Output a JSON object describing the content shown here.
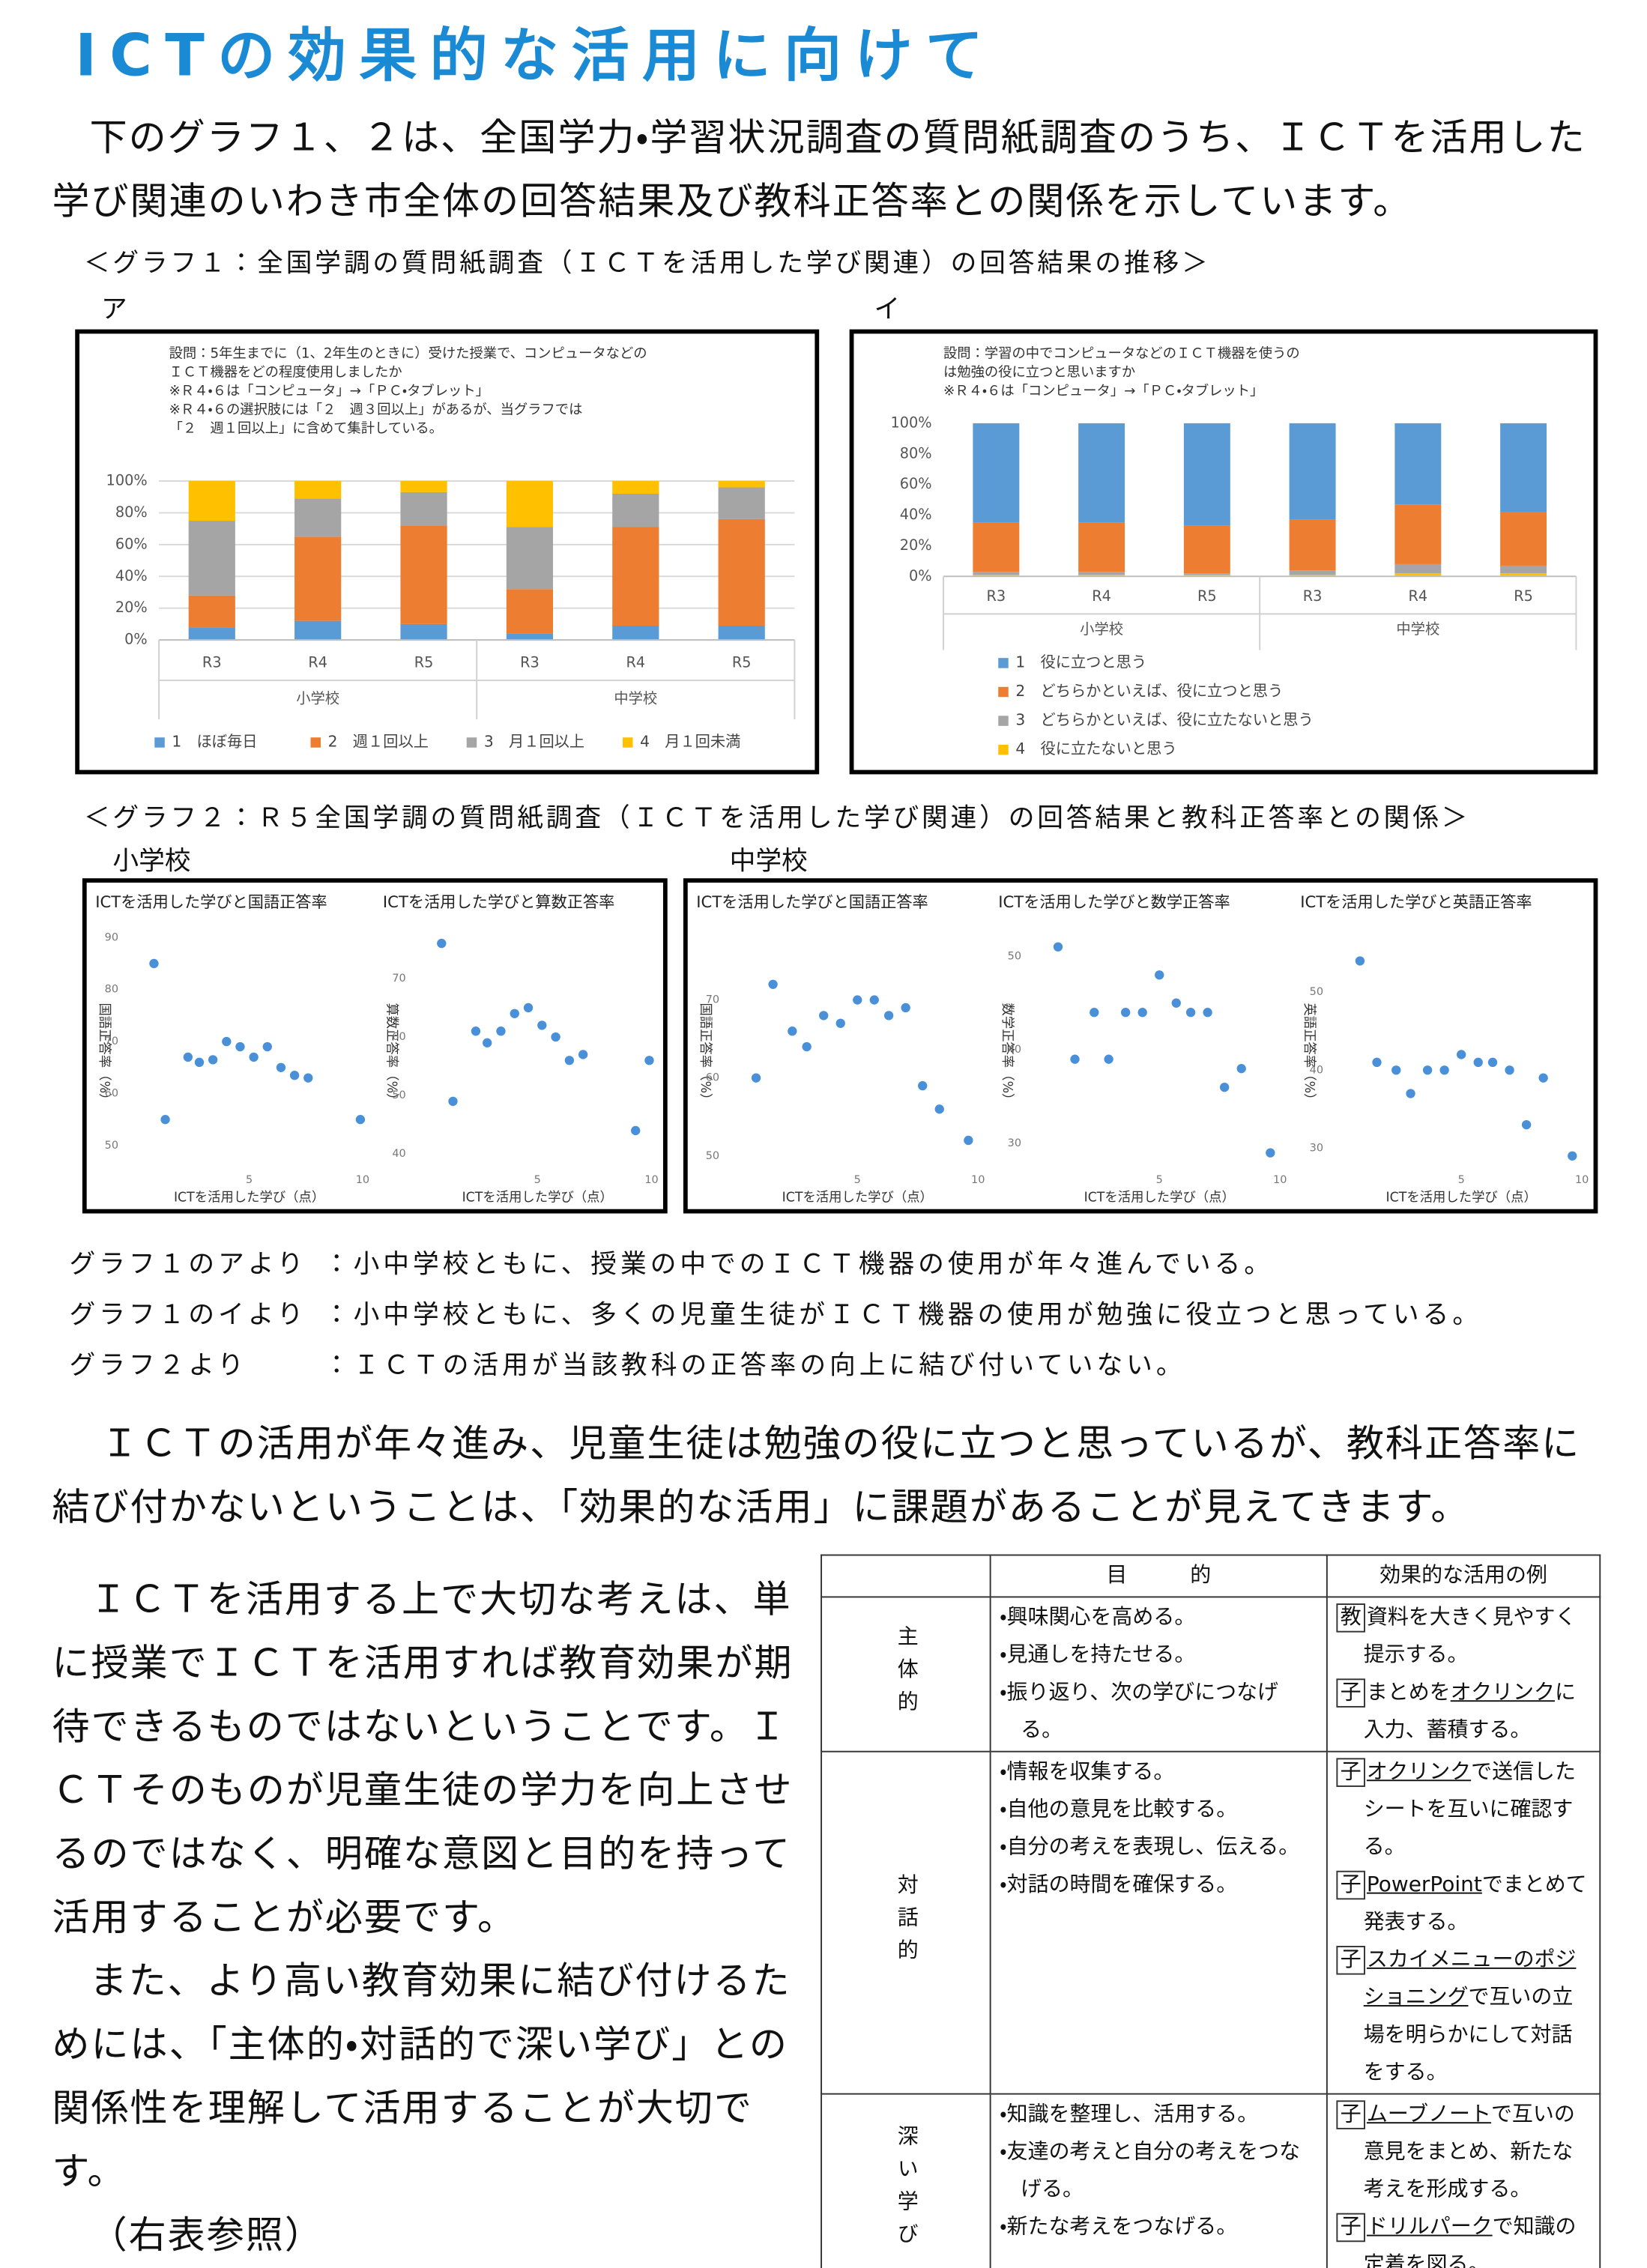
{
  "title": "ICTの効果的な活用に向けて",
  "intro": "下のグラフ１、２は、全国学力・学習状況調査の質問紙調査のうち、ＩＣＴを活用した学び関連のいわき市全体の回答結果及び教科正答率との関係を示しています。",
  "graph1_caption": "＜グラフ１：全国学調の質問紙調査（ＩＣＴを活用した学び関連）の回答結果の推移＞",
  "graph1_labels": [
    "ア",
    "イ"
  ],
  "graph2_caption": "＜グラフ２：Ｒ５全国学調の質問紙調査（ＩＣＴを活用した学び関連）の回答結果と教科正答率との関係＞",
  "graph2_labels": [
    "小学校",
    "中学校"
  ],
  "findings": [
    {
      "source": "グラフ１のアより",
      "text": "：小中学校ともに、授業の中でのＩＣＴ機器の使用が年々進んでいる。"
    },
    {
      "source": "グラフ１のイより",
      "text": "：小中学校ともに、多くの児童生徒がＩＣＴ機器の使用が勉強に役立つと思っている。"
    },
    {
      "source": "グラフ２より",
      "text": "：ＩＣＴの活用が当該教科の正答率の向上に結び付いていない。"
    }
  ],
  "conclusion": "ＩＣＴの活用が年々進み、児童生徒は勉強の役に立つと思っているが、教科正答率に結び付かないということは、「効果的な活用」に課題があることが見えてきます。",
  "body": [
    "ＩＣＴを活用する上で大切な考えは、単に授業でＩＣＴを活用すれば教育効果が期待できるものではないということです。ＩＣＴそのものが児童生徒の学力を向上させるのではなく、明確な意図と目的を持って活用することが必要です。",
    "また、より高い教育効果に結び付けるためには、「主体的・対話的で深い学び」との関係性を理解して活用することが大切です。",
    "（右表参照）"
  ],
  "table": {
    "headers": [
      "目　　　的",
      "効果的な活用の例"
    ],
    "rows": [
      {
        "label": "主体的",
        "goals": [
          "・興味関心を高める。",
          "・見通しを持たせる。",
          "・振り返り、次の学びにつなげる。"
        ],
        "examples": [
          {
            "mark": "教",
            "segments": [
              {
                "text": "資料を大きく見やすく提示する。"
              }
            ]
          },
          {
            "mark": "子",
            "segments": [
              {
                "text": "まとめを"
              },
              {
                "text": "オクリンク",
                "underline": true
              },
              {
                "text": "に入力、蓄積する。"
              }
            ]
          }
        ]
      },
      {
        "label": "対話的",
        "goals": [
          "・情報を収集する。",
          "・自他の意見を比較する。",
          "・自分の考えを表現し、伝える。",
          "・対話の時間を確保する。"
        ],
        "examples": [
          {
            "mark": "子",
            "segments": [
              {
                "text": "オクリンク",
                "underline": true
              },
              {
                "text": "で送信したシートを互いに確認する。"
              }
            ]
          },
          {
            "mark": "子",
            "segments": [
              {
                "text": "PowerPoint",
                "underline": true
              },
              {
                "text": "でまとめて発表する。"
              }
            ]
          },
          {
            "mark": "子",
            "segments": [
              {
                "text": "スカイメニューのポジショニング",
                "underline": true
              },
              {
                "text": "で互いの立場を明らかにして対話をする。"
              }
            ]
          }
        ]
      },
      {
        "label": "深い学び",
        "goals": [
          "・知識を整理し、活用する。",
          "・友達の考えと自分の考えをつなげる。",
          "・新たな考えをつなげる。"
        ],
        "examples": [
          {
            "mark": "子",
            "segments": [
              {
                "text": "ムーブノート",
                "underline": true
              },
              {
                "text": "で互いの意見をまとめ、新たな考えを形成する。"
              }
            ]
          },
          {
            "mark": "子",
            "segments": [
              {
                "text": "ドリルパーク",
                "underline": true
              },
              {
                "text": "で知識の定着を図る。"
              }
            ]
          }
        ]
      }
    ]
  },
  "chart_data": [
    {
      "type": "bar",
      "stacked": true,
      "note": [
        "設問：5年生までに（1、2年生のときに）受けた授業で、コンピュータなどの",
        "ＩＣＴ機器をどの程度使用しましたか",
        "※Ｒ４・６は「コンピュータ」→「ＰＣ・タブレット」",
        "※Ｒ４・６の選択肢には「２　週３回以上」があるが、当グラフでは",
        "「２　週１回以上」に含めて集計している。"
      ],
      "categories": [
        "R3",
        "R4",
        "R5",
        "R3",
        "R4",
        "R5"
      ],
      "groups": [
        "小学校",
        "中学校"
      ],
      "series": [
        {
          "name": "1　ほぼ毎日",
          "color": "#5b9bd5",
          "values": [
            8,
            12,
            10,
            4,
            9,
            9
          ]
        },
        {
          "name": "2　週１回以上",
          "color": "#ed7d31",
          "values": [
            20,
            53,
            62,
            28,
            62,
            67
          ]
        },
        {
          "name": "3　月１回以上",
          "color": "#a5a5a5",
          "values": [
            47,
            24,
            21,
            39,
            21,
            20
          ]
        },
        {
          "name": "4　月１回未満",
          "color": "#ffc000",
          "values": [
            25,
            11,
            7,
            29,
            8,
            4
          ]
        }
      ],
      "ylim": [
        0,
        100
      ],
      "yticks": [
        {
          "value": 0,
          "label": "0%"
        },
        {
          "value": 20,
          "label": "20%"
        },
        {
          "value": 40,
          "label": "40%"
        },
        {
          "value": 60,
          "label": "60%"
        },
        {
          "value": 80,
          "label": "80%"
        },
        {
          "value": 100,
          "label": "100%"
        }
      ],
      "grid": true,
      "legend": "bottom"
    },
    {
      "type": "bar",
      "stacked": true,
      "stack_reverse": true,
      "note": [
        "設問：学習の中でコンピュータなどのＩＣＴ機器を使うの",
        "は勉強の役に立つと思いますか",
        "※Ｒ４・６は「コンピュータ」→「ＰＣ・タブレット」"
      ],
      "categories": [
        "R3",
        "R4",
        "R5",
        "R3",
        "R4",
        "R5"
      ],
      "groups": [
        "小学校",
        "中学校"
      ],
      "series": [
        {
          "name": "1　役に立つと思う",
          "color": "#5b9bd5",
          "values": [
            65,
            65,
            67,
            63,
            53,
            58
          ]
        },
        {
          "name": "2　どちらかといえば、役に立つと思う",
          "color": "#ed7d31",
          "values": [
            32,
            32,
            31,
            33,
            39,
            35
          ]
        },
        {
          "name": "3　どちらかといえば、役に立たないと思う",
          "color": "#a5a5a5",
          "values": [
            2,
            2,
            1,
            3,
            6,
            5
          ]
        },
        {
          "name": "4　役に立たないと思う",
          "color": "#ffc000",
          "values": [
            1,
            1,
            1,
            1,
            2,
            2
          ]
        }
      ],
      "ylim": [
        0,
        100
      ],
      "yticks": [
        {
          "value": 0,
          "label": "0%"
        },
        {
          "value": 20,
          "label": "20%"
        },
        {
          "value": 40,
          "label": "40%"
        },
        {
          "value": 60,
          "label": "60%"
        },
        {
          "value": 80,
          "label": "80%"
        },
        {
          "value": 100,
          "label": "100%"
        }
      ],
      "grid": false,
      "legend": "bottom"
    },
    {
      "type": "scatter",
      "title": "ICTを活用した学びと国語正答率",
      "x_label": "ICTを活用した学び（点）",
      "y_label": "国語正答率（%）",
      "color": "#4a90d9",
      "x": [
        0.8,
        1.3,
        2.3,
        2.8,
        3.4,
        4,
        4.6,
        5.2,
        5.8,
        6.4,
        7,
        7.6,
        9.9
      ],
      "values": [
        85,
        55,
        67,
        66,
        66.5,
        70,
        69,
        67,
        69,
        65,
        63.5,
        63,
        55
      ],
      "xlim": [
        0,
        10
      ],
      "xticks": [
        5,
        10
      ],
      "ylim": [
        45,
        90
      ],
      "yticks": [
        50,
        60,
        70,
        80,
        90
      ]
    },
    {
      "type": "scatter",
      "title": "ICTを活用した学びと算数正答率",
      "x_label": "ICTを活用した学び（点）",
      "y_label": "算数正答率（%）",
      "color": "#4a90d9",
      "x": [
        0.8,
        1.3,
        2.3,
        2.8,
        3.4,
        4,
        4.6,
        5.2,
        5.8,
        6.4,
        7,
        9.3,
        9.9
      ],
      "values": [
        76,
        49,
        61,
        59,
        61,
        64,
        65,
        62,
        60,
        56,
        57,
        44,
        56
      ],
      "xlim": [
        0,
        10
      ],
      "xticks": [
        5,
        10
      ],
      "ylim": [
        37,
        77
      ],
      "yticks": [
        40,
        50,
        60,
        70
      ]
    },
    {
      "type": "scatter",
      "title": "ICTを活用した学びと国語正答率",
      "x_label": "ICTを活用した学び（点）",
      "y_label": "国語正答率（%）",
      "color": "#4a90d9",
      "x": [
        0.8,
        1.5,
        2.3,
        2.9,
        3.6,
        4.3,
        5,
        5.7,
        6.3,
        7,
        7.7,
        8.4,
        9.6
      ],
      "values": [
        60,
        72,
        66,
        64,
        68,
        67,
        70,
        70,
        68,
        69,
        59,
        56,
        52
      ],
      "xlim": [
        0,
        10
      ],
      "xticks": [
        5,
        10
      ],
      "ylim": [
        48,
        78
      ],
      "yticks": [
        50,
        60,
        70
      ]
    },
    {
      "type": "scatter",
      "title": "ICTを活用した学びと数学正答率",
      "x_label": "ICTを活用した学び（点）",
      "y_label": "数学正答率（%）",
      "color": "#4a90d9",
      "x": [
        0.8,
        1.5,
        2.3,
        2.9,
        3.6,
        4.3,
        5,
        5.7,
        6.3,
        7,
        7.7,
        8.4,
        9.6
      ],
      "values": [
        51,
        39,
        44,
        39,
        44,
        44,
        48,
        45,
        44,
        44,
        36,
        38,
        29
      ],
      "xlim": [
        0,
        10
      ],
      "xticks": [
        5,
        10
      ],
      "ylim": [
        27,
        52
      ],
      "yticks": [
        30,
        40,
        50
      ]
    },
    {
      "type": "scatter",
      "title": "ICTを活用した学びと英語正答率",
      "x_label": "ICTを活用した学び（点）",
      "y_label": "英語正答率（%）",
      "color": "#4a90d9",
      "x": [
        0.8,
        1.5,
        2.3,
        2.9,
        3.6,
        4.3,
        5,
        5.7,
        6.3,
        7,
        7.7,
        8.4,
        9.6
      ],
      "values": [
        54,
        41,
        40,
        37,
        40,
        40,
        42,
        41,
        41,
        40,
        33,
        39,
        29
      ],
      "xlim": [
        0,
        10
      ],
      "xticks": [
        5,
        10
      ],
      "ylim": [
        27,
        57
      ],
      "yticks": [
        30,
        40,
        50
      ]
    }
  ]
}
